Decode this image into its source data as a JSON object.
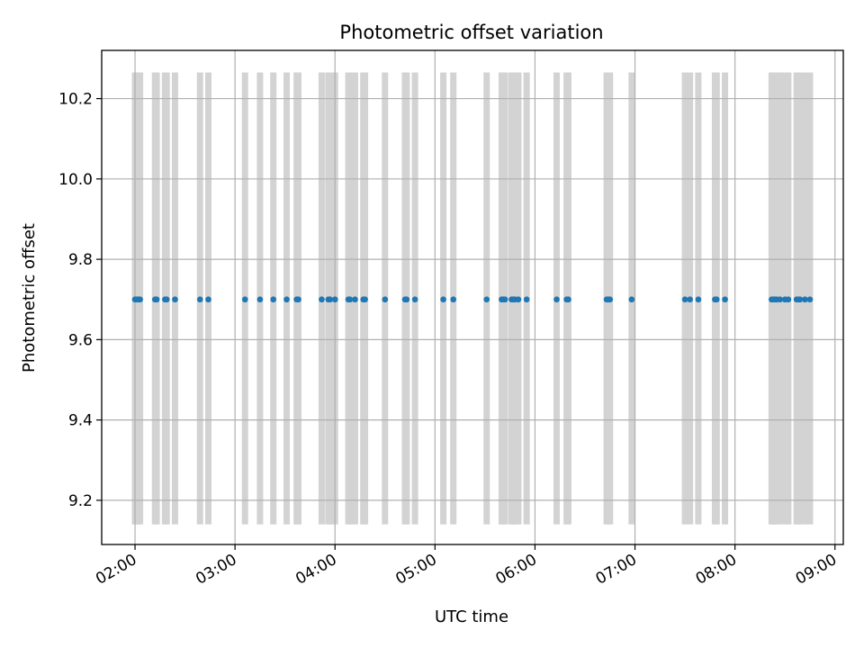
{
  "chart_data": {
    "type": "scatter",
    "title": "Photometric offset variation",
    "xlabel": "UTC time",
    "ylabel": "Photometric offset",
    "x_ticks": [
      "02:00",
      "03:00",
      "04:00",
      "05:00",
      "06:00",
      "07:00",
      "08:00",
      "09:00"
    ],
    "y_ticks": [
      "9.2",
      "9.4",
      "9.6",
      "9.8",
      "10.0",
      "10.2"
    ],
    "xlim": [
      "01:40",
      "09:05"
    ],
    "ylim": [
      9.09,
      10.32
    ],
    "grid": true,
    "point_color": "#1f77b4",
    "band_color": "#d3d3d3",
    "band_range": [
      9.14,
      10.265
    ],
    "points": {
      "y": 9.7,
      "times": [
        "02:00",
        "02:01",
        "02:02",
        "02:03",
        "02:12",
        "02:13",
        "02:18",
        "02:19",
        "02:24",
        "02:39",
        "02:44",
        "03:06",
        "03:15",
        "03:23",
        "03:31",
        "03:37",
        "03:38",
        "03:52",
        "03:56",
        "03:57",
        "04:00",
        "04:08",
        "04:09",
        "04:12",
        "04:17",
        "04:18",
        "04:30",
        "04:42",
        "04:43",
        "04:48",
        "05:05",
        "05:11",
        "05:31",
        "05:40",
        "05:41",
        "05:42",
        "05:46",
        "05:47",
        "05:48",
        "05:50",
        "05:55",
        "06:13",
        "06:19",
        "06:20",
        "06:43",
        "06:44",
        "06:45",
        "06:58",
        "07:30",
        "07:33",
        "07:38",
        "07:48",
        "07:49",
        "07:54",
        "08:22",
        "08:23",
        "08:24",
        "08:25",
        "08:27",
        "08:30",
        "08:32",
        "08:37",
        "08:38",
        "08:39",
        "08:42",
        "08:45"
      ]
    },
    "bands": {
      "times": [
        "02:00",
        "02:01",
        "02:02",
        "02:03",
        "02:12",
        "02:13",
        "02:18",
        "02:19",
        "02:24",
        "02:39",
        "02:44",
        "03:06",
        "03:15",
        "03:23",
        "03:31",
        "03:37",
        "03:38",
        "03:52",
        "03:56",
        "03:57",
        "04:00",
        "04:08",
        "04:09",
        "04:12",
        "04:17",
        "04:18",
        "04:30",
        "04:42",
        "04:43",
        "04:48",
        "05:05",
        "05:11",
        "05:31",
        "05:40",
        "05:41",
        "05:42",
        "05:46",
        "05:47",
        "05:48",
        "05:50",
        "05:55",
        "06:13",
        "06:19",
        "06:20",
        "06:43",
        "06:44",
        "06:45",
        "06:58",
        "07:30",
        "07:33",
        "07:38",
        "07:48",
        "07:49",
        "07:54",
        "08:22",
        "08:23",
        "08:24",
        "08:25",
        "08:27",
        "08:30",
        "08:32",
        "08:37",
        "08:38",
        "08:39",
        "08:42",
        "08:45"
      ]
    }
  }
}
